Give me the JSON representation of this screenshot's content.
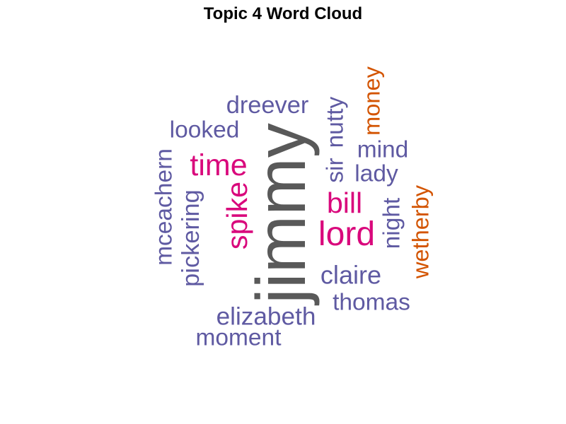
{
  "chart_data": {
    "type": "wordcloud",
    "title": "Topic 4 Word Cloud",
    "colors": {
      "top": "#595959",
      "high": "#D9087C",
      "mid": "#5F5AA2",
      "low": "#D35400"
    },
    "words": [
      {
        "text": "jimmy",
        "weight": 100,
        "color_group": "top",
        "orientation": "vertical"
      },
      {
        "text": "lord",
        "weight": 42,
        "color_group": "high",
        "orientation": "horizontal"
      },
      {
        "text": "time",
        "weight": 36,
        "color_group": "high",
        "orientation": "horizontal"
      },
      {
        "text": "spike",
        "weight": 34,
        "color_group": "high",
        "orientation": "vertical"
      },
      {
        "text": "bill",
        "weight": 34,
        "color_group": "high",
        "orientation": "horizontal"
      },
      {
        "text": "claire",
        "weight": 28,
        "color_group": "mid",
        "orientation": "horizontal"
      },
      {
        "text": "elizabeth",
        "weight": 27,
        "color_group": "mid",
        "orientation": "horizontal"
      },
      {
        "text": "pickering",
        "weight": 26,
        "color_group": "mid",
        "orientation": "vertical"
      },
      {
        "text": "dreever",
        "weight": 26,
        "color_group": "mid",
        "orientation": "horizontal"
      },
      {
        "text": "nutty",
        "weight": 25,
        "color_group": "mid",
        "orientation": "vertical"
      },
      {
        "text": "lady",
        "weight": 25,
        "color_group": "mid",
        "orientation": "horizontal"
      },
      {
        "text": "mind",
        "weight": 25,
        "color_group": "mid",
        "orientation": "horizontal"
      },
      {
        "text": "night",
        "weight": 25,
        "color_group": "mid",
        "orientation": "vertical"
      },
      {
        "text": "sir",
        "weight": 25,
        "color_group": "mid",
        "orientation": "vertical"
      },
      {
        "text": "thomas",
        "weight": 25,
        "color_group": "mid",
        "orientation": "horizontal"
      },
      {
        "text": "moment",
        "weight": 25,
        "color_group": "mid",
        "orientation": "horizontal"
      },
      {
        "text": "mceachern",
        "weight": 25,
        "color_group": "mid",
        "orientation": "vertical"
      },
      {
        "text": "looked",
        "weight": 25,
        "color_group": "mid",
        "orientation": "horizontal"
      },
      {
        "text": "money",
        "weight": 24,
        "color_group": "low",
        "orientation": "vertical"
      },
      {
        "text": "wetherby",
        "weight": 24,
        "color_group": "low",
        "orientation": "vertical"
      }
    ]
  }
}
